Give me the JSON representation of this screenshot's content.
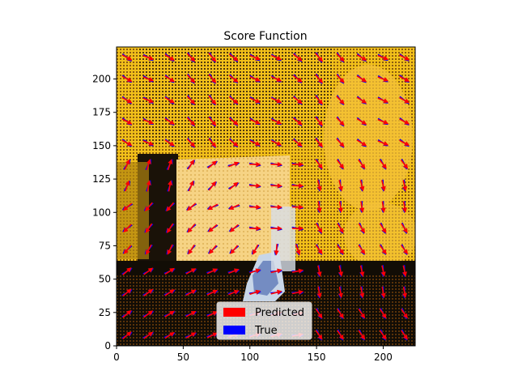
{
  "chart_data": {
    "type": "quiver",
    "title": "Score Function",
    "xlabel": "",
    "ylabel": "",
    "xlim": [
      0,
      224
    ],
    "ylim": [
      0,
      224
    ],
    "x_ticks": [
      0,
      50,
      100,
      150,
      200
    ],
    "y_ticks": [
      0,
      25,
      50,
      75,
      100,
      125,
      150,
      175,
      200
    ],
    "grid": false,
    "legend_position": "lower-center",
    "background": "false-color image (yellow/orange/black dithered scene)",
    "grid_spacing": 16,
    "grid_start": 8,
    "series": [
      {
        "name": "Predicted",
        "color": "#ff0000"
      },
      {
        "name": "True",
        "color": "#0000ff"
      }
    ]
  },
  "colors": {
    "image_yellow": "#f2c01a",
    "image_orange": "#f08c18",
    "image_dark": "#141008",
    "wall_light": "#f6d384",
    "predicted": "#ff0000",
    "true": "#0000ff"
  }
}
